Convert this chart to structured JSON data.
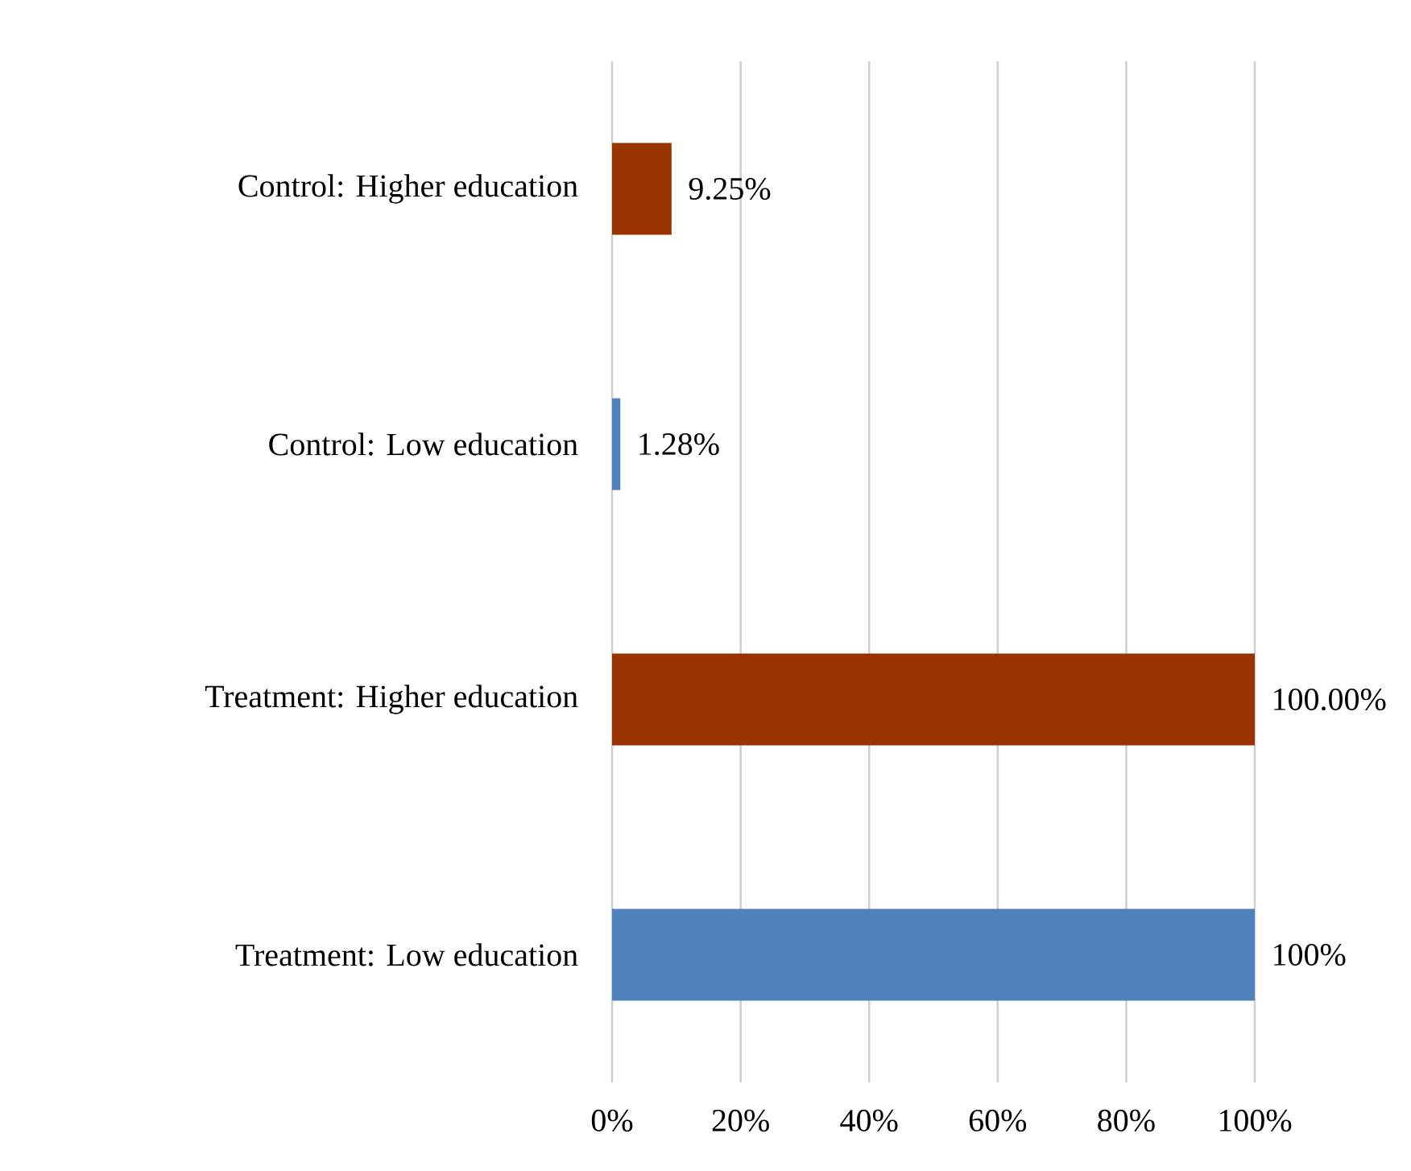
{
  "chart_data": {
    "type": "bar",
    "orientation": "horizontal",
    "categories": [
      "Control: Higher education",
      "Control: Low education",
      "Treatment: Higher education",
      "Treatment: Low education"
    ],
    "values": [
      9.25,
      1.28,
      100,
      100
    ],
    "colors": [
      "#993300",
      "#4f81bd",
      "#993300",
      "#4f81bd"
    ],
    "value_labels": [
      "9.25%",
      "1.28%",
      "100.00%",
      "100%"
    ],
    "xlim": [
      0,
      100
    ],
    "xticks": [
      {
        "value": 0,
        "label": "0%"
      },
      {
        "value": 20,
        "label": "20%"
      },
      {
        "value": 40,
        "label": "40%"
      },
      {
        "value": 60,
        "label": "60%"
      },
      {
        "value": 80,
        "label": "80%"
      },
      {
        "value": 100,
        "label": "100%"
      }
    ],
    "grid": "x"
  }
}
